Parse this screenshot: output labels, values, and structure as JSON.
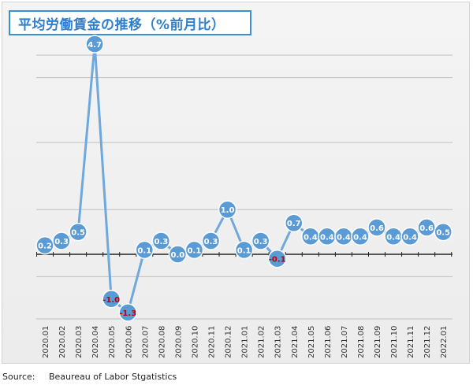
{
  "title": "平均労働賃金の推移（%前月比）",
  "source": "Source:     Beaureau of Labor Stgatistics",
  "colors": {
    "line": "#6fa8dc",
    "marker": "#5b9bd5",
    "marker_stroke": "#ffffff",
    "label_positive": "#ffffff",
    "label_negative": "#c00000",
    "axis": "#222222",
    "grid": "#bfbfbf",
    "title_border": "#3b8fd6",
    "title_text": "#2f7fcf"
  },
  "chart_data": {
    "type": "line",
    "title": "平均労働賃金の推移（%前月比）",
    "xlabel": "",
    "ylabel": "",
    "categories": [
      "2020.01",
      "2020.02",
      "2020.03",
      "2020.04",
      "2020.05",
      "2020.06",
      "2020.07",
      "2020.08",
      "2020.09",
      "2020.10",
      "2020.11",
      "2020.12",
      "2021.01",
      "2021.02",
      "2021.03",
      "2021.04",
      "2021.05",
      "2021.06",
      "2021.07",
      "2021.08",
      "2021.09",
      "2021.10",
      "2021.11",
      "2021.12",
      "2022.01"
    ],
    "series": [
      {
        "values": [
          0.2,
          0.3,
          0.5,
          4.7,
          -1.0,
          -1.3,
          0.1,
          0.3,
          0.0,
          0.1,
          0.3,
          1.0,
          0.1,
          0.3,
          -0.1,
          0.7,
          0.4,
          0.4,
          0.4,
          0.4,
          0.6,
          0.4,
          0.4,
          0.6,
          0.5
        ],
        "labels": [
          "0.2",
          "0.3",
          "0.5",
          "4.7",
          "-1.0",
          "-1.3",
          "0.1",
          "0.3",
          "0.0",
          "0.1",
          "0.3",
          "1.0",
          "0.1",
          "0.3",
          "-0.1",
          "0.7",
          "0.4",
          "0.4",
          "0.4",
          "0.4",
          "0.6",
          "0.4",
          "0.4",
          "0.6",
          "0.5"
        ]
      }
    ],
    "ylim": [
      -1.5,
      5.0
    ],
    "grid": true,
    "legend": "none"
  }
}
